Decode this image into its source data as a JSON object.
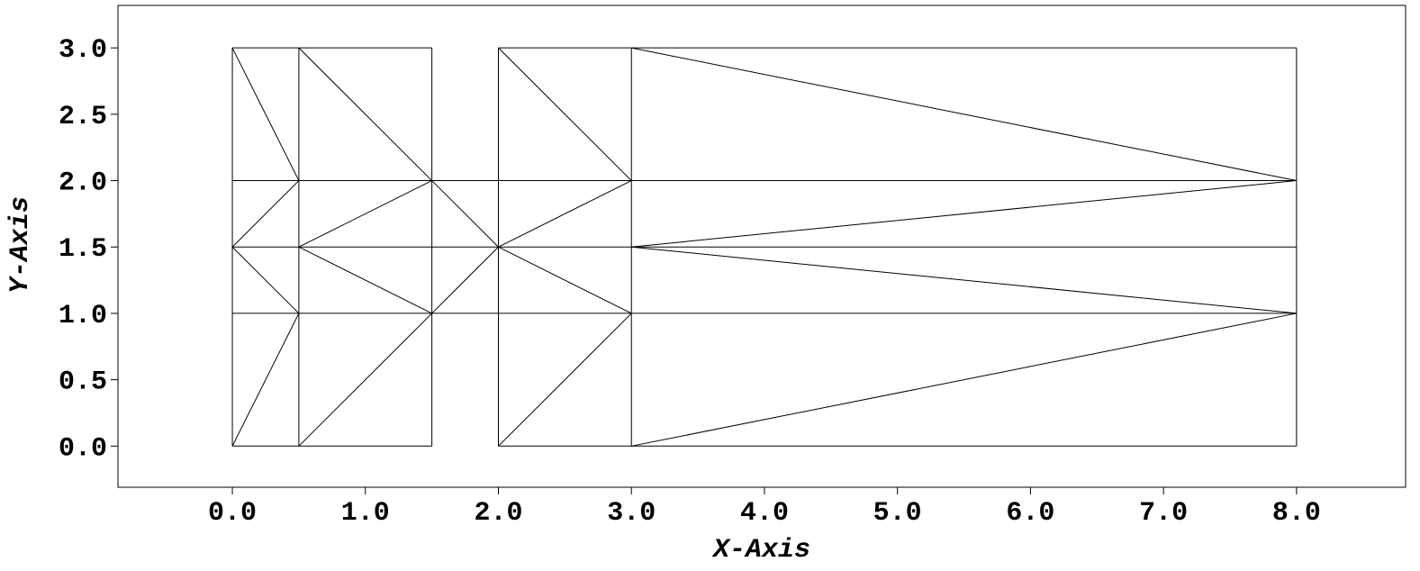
{
  "chart_data": {
    "type": "mesh",
    "xlabel": "X-Axis",
    "ylabel": "Y-Axis",
    "xlim": [
      -0.86,
      8.82
    ],
    "ylim": [
      -0.31,
      3.32
    ],
    "xticks": [
      {
        "value": 0,
        "label": "0.0"
      },
      {
        "value": 1,
        "label": "1.0"
      },
      {
        "value": 2,
        "label": "2.0"
      },
      {
        "value": 3,
        "label": "3.0"
      },
      {
        "value": 4,
        "label": "4.0"
      },
      {
        "value": 5,
        "label": "5.0"
      },
      {
        "value": 6,
        "label": "6.0"
      },
      {
        "value": 7,
        "label": "7.0"
      },
      {
        "value": 8,
        "label": "8.0"
      }
    ],
    "yticks": [
      {
        "value": 0,
        "label": "0.0"
      },
      0.5,
      {
        "value": 1,
        "label": "1.0"
      },
      1.5,
      {
        "value": 2,
        "label": "2.0"
      },
      2.5,
      {
        "value": 3,
        "label": "3.0"
      }
    ],
    "color": "#000000",
    "segments": [
      [
        0,
        0,
        0,
        3
      ],
      [
        0.5,
        0,
        0.5,
        3
      ],
      [
        1.5,
        0,
        1.5,
        3
      ],
      [
        2,
        0,
        2,
        3
      ],
      [
        3,
        0,
        3,
        3
      ],
      [
        8,
        0,
        8,
        3
      ],
      [
        0,
        0,
        1.5,
        0
      ],
      [
        2,
        0,
        8,
        0
      ],
      [
        0,
        3,
        1.5,
        3
      ],
      [
        2,
        3,
        8,
        3
      ],
      [
        0,
        1,
        8,
        1
      ],
      [
        0,
        1.5,
        8,
        1.5
      ],
      [
        0,
        2,
        8,
        2
      ],
      [
        0,
        3,
        0.5,
        2
      ],
      [
        0.5,
        3,
        1.5,
        2
      ],
      [
        0.5,
        2,
        0,
        1.5
      ],
      [
        1.5,
        2,
        0.5,
        1.5
      ],
      [
        0,
        1.5,
        0.5,
        1
      ],
      [
        0.5,
        1.5,
        1.5,
        1
      ],
      [
        0.5,
        1,
        0,
        0
      ],
      [
        1.5,
        1,
        0.5,
        0
      ],
      [
        1.5,
        2,
        2,
        1.5
      ],
      [
        1.5,
        1,
        2,
        1.5
      ],
      [
        2,
        3,
        3,
        2
      ],
      [
        2,
        1.5,
        3,
        2
      ],
      [
        2,
        1.5,
        3,
        1
      ],
      [
        3,
        1,
        2,
        0
      ],
      [
        3,
        3,
        8,
        2
      ],
      [
        3,
        1.5,
        8,
        2
      ],
      [
        3,
        1.5,
        8,
        1
      ],
      [
        3,
        0,
        8,
        1
      ]
    ]
  }
}
